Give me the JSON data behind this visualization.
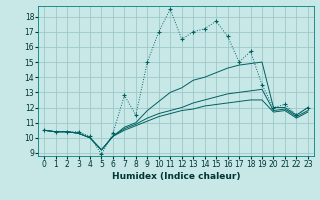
{
  "background_color": "#c8e8e8",
  "grid_color": "#a0c8c8",
  "line_color": "#006060",
  "xlabel": "Humidex (Indice chaleur)",
  "xlim": [
    -0.5,
    23.5
  ],
  "ylim": [
    8.8,
    18.7
  ],
  "yticks": [
    9,
    10,
    11,
    12,
    13,
    14,
    15,
    16,
    17,
    18
  ],
  "xticks": [
    0,
    1,
    2,
    3,
    4,
    5,
    6,
    7,
    8,
    9,
    10,
    11,
    12,
    13,
    14,
    15,
    16,
    17,
    18,
    19,
    20,
    21,
    22,
    23
  ],
  "series": [
    {
      "x": [
        0,
        1,
        2,
        3,
        4,
        5,
        6,
        7,
        8,
        9,
        10,
        11,
        12,
        13,
        14,
        15,
        16,
        17,
        18,
        19,
        20,
        21,
        22,
        23
      ],
      "y": [
        10.5,
        10.4,
        10.4,
        10.4,
        10.1,
        8.9,
        10.3,
        12.8,
        11.5,
        15.0,
        17.0,
        18.5,
        16.5,
        17.0,
        17.2,
        17.7,
        16.7,
        15.0,
        15.7,
        13.5,
        12.0,
        12.2,
        11.5,
        12.0
      ],
      "marker": "+"
    },
    {
      "x": [
        0,
        1,
        2,
        3,
        4,
        5,
        6,
        7,
        8,
        9,
        10,
        11,
        12,
        13,
        14,
        15,
        16,
        17,
        18,
        19,
        20,
        21,
        22,
        23
      ],
      "y": [
        10.5,
        10.4,
        10.4,
        10.3,
        10.0,
        9.2,
        10.1,
        10.7,
        11.0,
        11.8,
        12.4,
        13.0,
        13.3,
        13.8,
        14.0,
        14.3,
        14.6,
        14.8,
        14.9,
        15.0,
        12.0,
        12.0,
        11.5,
        12.0
      ],
      "marker": null
    },
    {
      "x": [
        0,
        1,
        2,
        3,
        4,
        5,
        6,
        7,
        8,
        9,
        10,
        11,
        12,
        13,
        14,
        15,
        16,
        17,
        18,
        19,
        20,
        21,
        22,
        23
      ],
      "y": [
        10.5,
        10.4,
        10.4,
        10.3,
        10.0,
        9.2,
        10.1,
        10.6,
        10.9,
        11.3,
        11.6,
        11.8,
        12.0,
        12.3,
        12.5,
        12.7,
        12.9,
        13.0,
        13.1,
        13.2,
        11.8,
        11.9,
        11.4,
        11.8
      ],
      "marker": null
    },
    {
      "x": [
        0,
        1,
        2,
        3,
        4,
        5,
        6,
        7,
        8,
        9,
        10,
        11,
        12,
        13,
        14,
        15,
        16,
        17,
        18,
        19,
        20,
        21,
        22,
        23
      ],
      "y": [
        10.5,
        10.4,
        10.4,
        10.3,
        10.0,
        9.2,
        10.1,
        10.5,
        10.8,
        11.1,
        11.4,
        11.6,
        11.8,
        11.9,
        12.1,
        12.2,
        12.3,
        12.4,
        12.5,
        12.5,
        11.7,
        11.8,
        11.3,
        11.7
      ],
      "marker": null
    }
  ]
}
